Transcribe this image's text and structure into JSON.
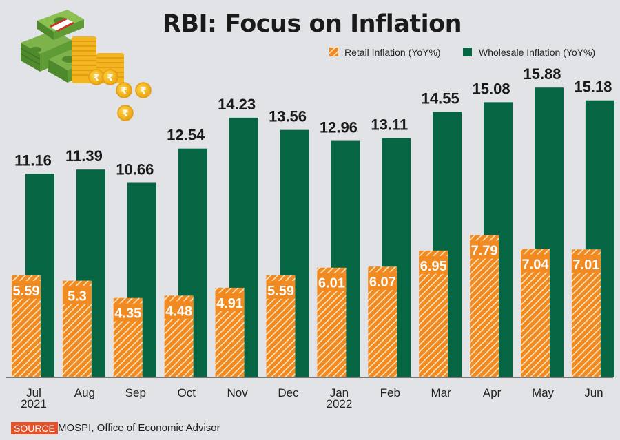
{
  "chart_data": {
    "type": "bar",
    "title": "RBI: Focus on Inflation",
    "xlabel": "",
    "ylabel": "",
    "ylim": [
      0,
      16.5
    ],
    "grid": false,
    "legend_position": "top-right",
    "categories": [
      "Jul",
      "Aug",
      "Sep",
      "Oct",
      "Nov",
      "Dec",
      "Jan",
      "Feb",
      "Mar",
      "Apr",
      "May",
      "Jun"
    ],
    "category_sublabels": [
      "2021",
      "",
      "",
      "",
      "",
      "",
      "2022",
      "",
      "",
      "",
      "",
      ""
    ],
    "series": [
      {
        "name": "Retail Inflation (YoY%)",
        "color": "#f18a21",
        "pattern": "diagonal-hatch",
        "values": [
          5.59,
          5.3,
          4.35,
          4.48,
          4.91,
          5.59,
          6.01,
          6.07,
          6.95,
          7.79,
          7.04,
          7.01
        ],
        "labels": [
          "5.59",
          "5.3",
          "4.35",
          "4.48",
          "4.91",
          "5.59",
          "6.01",
          "6.07",
          "6.95",
          "7.79",
          "7.04",
          "7.01"
        ]
      },
      {
        "name": "Wholesale Inflation (YoY%)",
        "color": "#066644",
        "pattern": "solid",
        "values": [
          11.16,
          11.39,
          10.66,
          12.54,
          14.23,
          13.56,
          12.96,
          13.11,
          14.55,
          15.08,
          15.88,
          15.18
        ],
        "labels": [
          "11.16",
          "11.39",
          "10.66",
          "12.54",
          "14.23",
          "13.56",
          "12.96",
          "13.11",
          "14.55",
          "15.08",
          "15.88",
          "15.18"
        ]
      }
    ]
  },
  "illustration": {
    "icon": "money-stack-and-rupee-coins-icon"
  },
  "source": {
    "tag": "SOURCE",
    "text": "MOSPI, Office of Economic Advisor"
  },
  "colors": {
    "background": "#e1e3e6",
    "retail": "#f18a21",
    "wholesale": "#066644",
    "source_tag": "#e4522c"
  }
}
